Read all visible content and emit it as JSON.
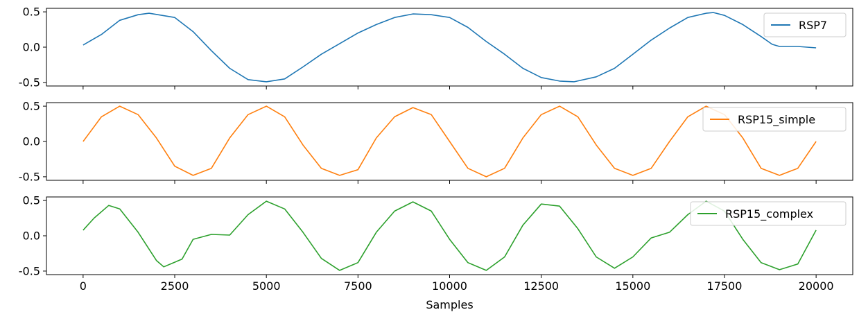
{
  "chart_data": {
    "type": "line",
    "xlabel": "Samples",
    "xlim": [
      -1000,
      21000
    ],
    "xticks": [
      0,
      2500,
      5000,
      7500,
      10000,
      12500,
      15000,
      17500,
      20000
    ],
    "yticks": [
      -0.5,
      0.0,
      0.5
    ],
    "ylim": [
      -0.55,
      0.55
    ],
    "legend_placement": "upper right",
    "grid": false,
    "panels": [
      {
        "series": [
          {
            "name": "RSP7",
            "color": "#1f77b4",
            "x": [
              0,
              500,
              1000,
              1500,
              1800,
              2500,
              3000,
              3500,
              4000,
              4500,
              5000,
              5500,
              6000,
              6500,
              7000,
              7500,
              8000,
              8500,
              9000,
              9500,
              10000,
              10500,
              11000,
              11500,
              12000,
              12500,
              13000,
              13400,
              14000,
              14500,
              15000,
              15500,
              16000,
              16500,
              17000,
              17200,
              17500,
              18000,
              18500,
              18800,
              19000,
              19500,
              20000
            ],
            "y": [
              0.03,
              0.18,
              0.38,
              0.46,
              0.48,
              0.42,
              0.22,
              -0.05,
              -0.3,
              -0.46,
              -0.49,
              -0.45,
              -0.28,
              -0.1,
              0.05,
              0.2,
              0.32,
              0.42,
              0.47,
              0.46,
              0.42,
              0.28,
              0.08,
              -0.1,
              -0.3,
              -0.43,
              -0.48,
              -0.49,
              -0.42,
              -0.3,
              -0.1,
              0.1,
              0.27,
              0.42,
              0.48,
              0.49,
              0.45,
              0.32,
              0.15,
              0.04,
              0.01,
              0.01,
              -0.01
            ]
          }
        ]
      },
      {
        "series": [
          {
            "name": "RSP15_simple",
            "color": "#ff7f0e",
            "x": [
              0,
              500,
              1000,
              1500,
              2000,
              2500,
              3000,
              3500,
              4000,
              4500,
              5000,
              5500,
              6000,
              6500,
              7000,
              7500,
              8000,
              8500,
              9000,
              9500,
              10000,
              10500,
              11000,
              11500,
              12000,
              12500,
              13000,
              13500,
              14000,
              14500,
              15000,
              15500,
              16000,
              16500,
              17000,
              17500,
              18000,
              18500,
              19000,
              19500,
              20000
            ],
            "y": [
              0.0,
              0.35,
              0.5,
              0.38,
              0.05,
              -0.35,
              -0.48,
              -0.38,
              0.05,
              0.38,
              0.5,
              0.35,
              -0.05,
              -0.38,
              -0.48,
              -0.4,
              0.05,
              0.35,
              0.48,
              0.38,
              0.0,
              -0.38,
              -0.5,
              -0.38,
              0.05,
              0.38,
              0.5,
              0.35,
              -0.05,
              -0.38,
              -0.48,
              -0.38,
              0.0,
              0.35,
              0.5,
              0.38,
              0.05,
              -0.38,
              -0.48,
              -0.38,
              0.0
            ]
          }
        ]
      },
      {
        "series": [
          {
            "name": "RSP15_complex",
            "color": "#2ca02c",
            "x": [
              0,
              300,
              700,
              1000,
              1500,
              2000,
              2200,
              2700,
              3000,
              3500,
              4000,
              4500,
              5000,
              5500,
              6000,
              6500,
              7000,
              7500,
              8000,
              8500,
              9000,
              9500,
              10000,
              10500,
              11000,
              11500,
              12000,
              12500,
              13000,
              13500,
              14000,
              14500,
              15000,
              15500,
              16000,
              16500,
              17000,
              17500,
              18000,
              18500,
              19000,
              19500,
              20000
            ],
            "y": [
              0.08,
              0.25,
              0.43,
              0.38,
              0.05,
              -0.35,
              -0.44,
              -0.33,
              -0.05,
              0.02,
              0.01,
              0.3,
              0.49,
              0.38,
              0.05,
              -0.32,
              -0.49,
              -0.38,
              0.05,
              0.35,
              0.48,
              0.35,
              -0.05,
              -0.38,
              -0.49,
              -0.3,
              0.15,
              0.45,
              0.42,
              0.1,
              -0.3,
              -0.46,
              -0.3,
              -0.03,
              0.05,
              0.3,
              0.49,
              0.35,
              -0.05,
              -0.38,
              -0.48,
              -0.4,
              0.08
            ]
          }
        ]
      }
    ]
  }
}
